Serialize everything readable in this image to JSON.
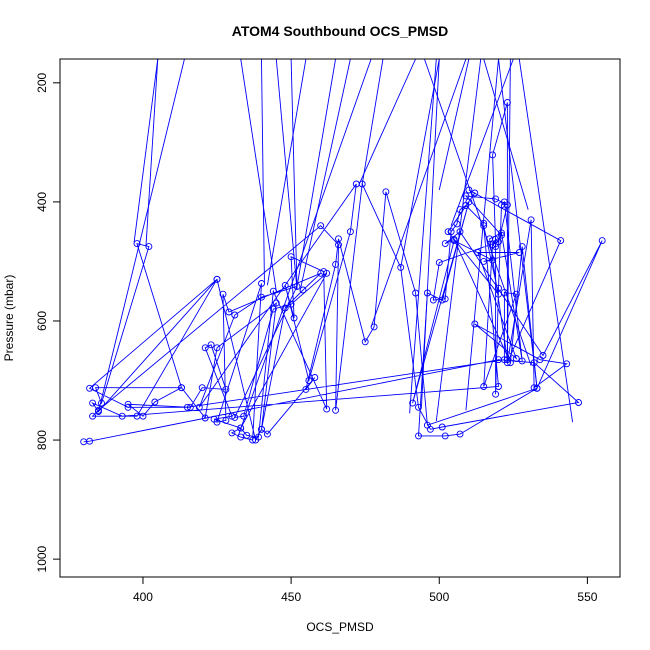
{
  "chart_data": {
    "type": "line",
    "title": "ATOM4 Southbound OCS_PMSD",
    "xlabel": "OCS_PMSD",
    "ylabel": "Pressure (mbar)",
    "xlim": [
      372,
      561
    ],
    "ylim": [
      1030,
      160
    ],
    "y_reversed": true,
    "xticks": [
      400,
      450,
      500,
      550
    ],
    "yticks": [
      200,
      400,
      600,
      800,
      1000
    ],
    "color": "#0000ff",
    "marker": "open-circle",
    "series": [
      {
        "points": [
          [
            380,
            803
          ],
          [
            382,
            802
          ],
          [
            520,
            665
          ],
          [
            532,
            670
          ],
          [
            547,
            737
          ],
          [
            501,
            778
          ],
          [
            497,
            782
          ],
          [
            493,
            745
          ],
          [
            487,
            510
          ],
          [
            474,
            370
          ],
          [
            465,
            750
          ],
          [
            466,
            472
          ],
          [
            460,
            440
          ],
          [
            385,
            750
          ],
          [
            383,
            760
          ],
          [
            398,
            760
          ],
          [
            425,
            530
          ],
          [
            385,
            752
          ],
          [
            383,
            738
          ],
          [
            393,
            760
          ],
          [
            520,
            710
          ],
          [
            515,
            440
          ],
          [
            520,
            555
          ],
          [
            503,
            450
          ],
          [
            512,
            385
          ],
          [
            510,
            380
          ],
          [
            541,
            465
          ],
          [
            523,
            670
          ],
          [
            531,
            430
          ],
          [
            532,
            712
          ],
          [
            543,
            672
          ],
          [
            534,
            665
          ],
          [
            512,
            605
          ],
          [
            526,
            663
          ],
          [
            513,
            485
          ],
          [
            527,
            485
          ],
          [
            515,
            500
          ],
          [
            518,
            498
          ],
          [
            505,
            465
          ],
          [
            491,
            738
          ],
          [
            510,
            400
          ],
          [
            501,
            565
          ],
          [
            496,
            553
          ],
          [
            493,
            793
          ],
          [
            502,
            793
          ],
          [
            507,
            790
          ],
          [
            533,
            713
          ],
          [
            528,
            475
          ],
          [
            524,
            670
          ],
          [
            505,
            463
          ],
          [
            502,
            470
          ],
          [
            507,
            450
          ],
          [
            535,
            658
          ],
          [
            555,
            465
          ],
          [
            533,
            713
          ],
          [
            496,
            775
          ],
          [
            492,
            553
          ],
          [
            482,
            383
          ],
          [
            478,
            610
          ],
          [
            475,
            635
          ],
          [
            466,
            462
          ],
          [
            465,
            505
          ],
          [
            455,
            715
          ],
          [
            458,
            695
          ],
          [
            442,
            790
          ],
          [
            440,
            782
          ],
          [
            448,
            578
          ],
          [
            454,
            548
          ],
          [
            460,
            520
          ],
          [
            429,
            585
          ],
          [
            427,
            555
          ],
          [
            428,
            767
          ],
          [
            425,
            770
          ],
          [
            440,
            537
          ],
          [
            437,
            800
          ],
          [
            433,
            795
          ],
          [
            430,
            788
          ],
          [
            433,
            780
          ],
          [
            435,
            792
          ],
          [
            439,
            795
          ],
          [
            444,
            550
          ],
          [
            462,
            748
          ],
          [
            461,
            517
          ],
          [
            450,
            492
          ],
          [
            451,
            595
          ],
          [
            448,
            540
          ],
          [
            456,
            700
          ],
          [
            470,
            450
          ],
          [
            472,
            370
          ],
          [
            419,
            745
          ],
          [
            431,
            590
          ],
          [
            440,
            560
          ],
          [
            452,
            542
          ],
          [
            431,
            762
          ],
          [
            434,
            760
          ],
          [
            444,
            580
          ],
          [
            450,
            572
          ],
          [
            462,
            520
          ],
          [
            433,
            780
          ],
          [
            424,
            765
          ],
          [
            430,
            760
          ],
          [
            421,
            645
          ],
          [
            423,
            640
          ],
          [
            428,
            715
          ],
          [
            420,
            712
          ],
          [
            416,
            745
          ],
          [
            395,
            740
          ],
          [
            400,
            760
          ],
          [
            404,
            736
          ],
          [
            413,
            712
          ],
          [
            398,
            470
          ],
          [
            402,
            475
          ],
          [
            386,
            738
          ],
          [
            384,
            712
          ],
          [
            413,
            712
          ],
          [
            421,
            763
          ],
          [
            425,
            645
          ],
          [
            445,
            570
          ],
          [
            440,
            782
          ],
          [
            438,
            800
          ],
          [
            425,
            530
          ],
          [
            382,
            713
          ],
          [
            395,
            745
          ],
          [
            415,
            745
          ],
          [
            522,
            665
          ],
          [
            522,
            552
          ],
          [
            526,
            555
          ],
          [
            515,
            710
          ],
          [
            518,
            472
          ],
          [
            519,
            463
          ],
          [
            519,
            475
          ],
          [
            519,
            723
          ],
          [
            520,
            545
          ],
          [
            521,
            405
          ],
          [
            522,
            400
          ],
          [
            528,
            667
          ],
          [
            521,
            452
          ],
          [
            517,
            462
          ],
          [
            523,
            665
          ],
          [
            523,
            233
          ],
          [
            518,
            321
          ],
          [
            519,
            470
          ],
          [
            521,
            456
          ],
          [
            509,
            390
          ],
          [
            519,
            395
          ],
          [
            523,
            405
          ],
          [
            520,
            467
          ],
          [
            500,
            502
          ],
          [
            498,
            565
          ],
          [
            502,
            563
          ],
          [
            504,
            450
          ],
          [
            506,
            437
          ],
          [
            507,
            413
          ],
          [
            509,
            406
          ],
          [
            515,
            436
          ]
        ]
      }
    ],
    "spikes": [
      [
        [
          397,
          468
        ],
        [
          405,
          160
        ]
      ],
      [
        [
          401,
          475
        ],
        [
          405,
          160
        ]
      ],
      [
        [
          385,
          752
        ],
        [
          414,
          160
        ]
      ],
      [
        [
          452,
          548
        ],
        [
          445,
          160
        ]
      ],
      [
        [
          452,
          542
        ],
        [
          465,
          160
        ]
      ],
      [
        [
          445,
          550
        ],
        [
          433,
          160
        ]
      ],
      [
        [
          441,
          537
        ],
        [
          440,
          160
        ]
      ],
      [
        [
          442,
          540
        ],
        [
          455,
          160
        ]
      ],
      [
        [
          453,
          550
        ],
        [
          470,
          160
        ]
      ],
      [
        [
          473,
          370
        ],
        [
          492,
          160
        ]
      ],
      [
        [
          432,
          795
        ],
        [
          477,
          160
        ]
      ],
      [
        [
          452,
          548
        ],
        [
          450,
          160
        ]
      ],
      [
        [
          477,
          610
        ],
        [
          509,
          160
        ]
      ],
      [
        [
          487,
          510
        ],
        [
          500,
          160
        ]
      ],
      [
        [
          474,
          370
        ],
        [
          481,
          160
        ]
      ],
      [
        [
          494,
          743
        ],
        [
          500,
          160
        ]
      ],
      [
        [
          499,
          768
        ],
        [
          514,
          160
        ]
      ],
      [
        [
          509,
          750
        ],
        [
          520,
          160
        ]
      ],
      [
        [
          523,
          667
        ],
        [
          524,
          160
        ]
      ],
      [
        [
          533,
          713
        ],
        [
          520,
          160
        ]
      ],
      [
        [
          530,
          413
        ],
        [
          515,
          160
        ]
      ],
      [
        [
          545,
          770
        ],
        [
          527,
          160
        ]
      ],
      [
        [
          504,
          440
        ],
        [
          525,
          160
        ]
      ],
      [
        [
          490,
          755
        ],
        [
          499,
          160
        ]
      ],
      [
        [
          500,
          380
        ],
        [
          510,
          160
        ]
      ],
      [
        [
          531,
          675
        ],
        [
          495,
          160
        ]
      ]
    ]
  }
}
